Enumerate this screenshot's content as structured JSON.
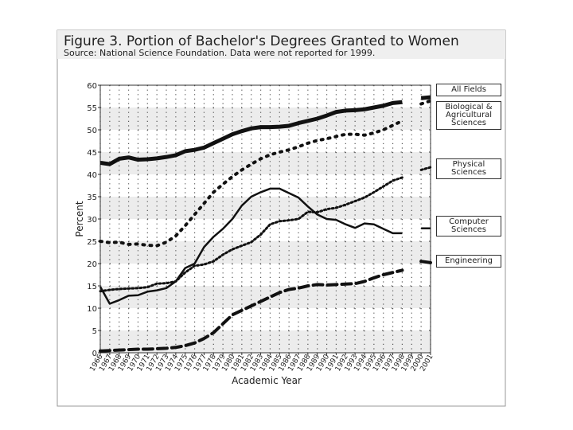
{
  "chart_data": {
    "type": "line",
    "title": "Figure 3. Portion of Bachelor's Degrees Granted to Women",
    "subtitle": "Source: National Science Foundation. Data were not reported for 1999.",
    "x_label": "Academic Year",
    "y_label": "Percent",
    "x": [
      1966,
      1967,
      1968,
      1969,
      1970,
      1971,
      1972,
      1973,
      1974,
      1975,
      1976,
      1977,
      1978,
      1979,
      1980,
      1981,
      1982,
      1983,
      1984,
      1985,
      1986,
      1987,
      1988,
      1989,
      1990,
      1991,
      1992,
      1993,
      1994,
      1995,
      1996,
      1997,
      1998,
      1999,
      2000,
      2001
    ],
    "xlim": [
      1966,
      2001
    ],
    "xticks": [
      1966,
      1967,
      1968,
      1969,
      1970,
      1971,
      1972,
      1973,
      1974,
      1975,
      1976,
      1977,
      1978,
      1979,
      1980,
      1981,
      1982,
      1983,
      1984,
      1985,
      1986,
      1987,
      1988,
      1989,
      1990,
      1991,
      1992,
      1993,
      1994,
      1995,
      1996,
      1997,
      1998,
      1999,
      2000,
      2001
    ],
    "ylim": [
      0,
      60
    ],
    "yticks": [
      0,
      5,
      10,
      15,
      20,
      25,
      30,
      35,
      40,
      45,
      50,
      55,
      60
    ],
    "grid": true,
    "series": [
      {
        "name": "All Fields",
        "color": "#111111",
        "width": 5,
        "dash": "solid",
        "values": [
          42.6,
          42.3,
          43.5,
          43.8,
          43.3,
          43.4,
          43.6,
          43.9,
          44.3,
          45.2,
          45.5,
          46,
          47,
          48,
          49,
          49.7,
          50.3,
          50.6,
          50.6,
          50.7,
          50.9,
          51.5,
          52,
          52.5,
          53.2,
          54,
          54.3,
          54.4,
          54.6,
          55,
          55.4,
          56,
          56.2,
          null,
          57.1,
          57.3
        ]
      },
      {
        "name": "Biological & Agricultural Sciences",
        "color": "#111111",
        "width": 4,
        "dash": "dotted",
        "values": [
          25,
          24.7,
          24.8,
          24.3,
          24.4,
          24.1,
          24,
          24.8,
          26.2,
          28.5,
          31,
          33.5,
          36,
          37.8,
          39.5,
          41,
          42.3,
          43.5,
          44.4,
          45,
          45.5,
          46.2,
          47,
          47.6,
          48,
          48.5,
          49,
          49,
          48.8,
          49.3,
          50,
          51,
          52,
          null,
          55.8,
          56.5
        ]
      },
      {
        "name": "Physical Sciences",
        "color": "#111111",
        "width": 3,
        "dash": "fine-dotted",
        "values": [
          13.8,
          14.1,
          14.3,
          14.4,
          14.5,
          14.7,
          15.5,
          15.6,
          16,
          18,
          19.5,
          19.8,
          20.5,
          22,
          23.2,
          24,
          24.8,
          26.5,
          28.8,
          29.5,
          29.7,
          30,
          31.6,
          31.5,
          32.2,
          32.5,
          33.2,
          34,
          34.8,
          36,
          37.3,
          38.6,
          39.3,
          null,
          41,
          41.6
        ]
      },
      {
        "name": "Computer Sciences",
        "color": "#111111",
        "width": 2.5,
        "dash": "solid",
        "values": [
          14.8,
          11,
          11.8,
          12.8,
          12.9,
          13.7,
          14,
          14.5,
          16,
          19,
          20,
          23.7,
          26,
          27.8,
          30,
          33,
          35,
          36,
          36.8,
          36.8,
          35.8,
          34.8,
          32.8,
          31,
          30,
          29.8,
          28.8,
          28,
          29,
          28.8,
          27.8,
          26.8,
          26.8,
          null,
          27.9,
          27.9
        ]
      },
      {
        "name": "Engineering",
        "color": "#111111",
        "width": 4,
        "dash": "dashed",
        "values": [
          0.4,
          0.5,
          0.6,
          0.7,
          0.8,
          0.8,
          0.9,
          1,
          1.2,
          1.6,
          2.2,
          3.2,
          4.5,
          6.5,
          8.5,
          9.5,
          10.5,
          11.5,
          12.5,
          13.5,
          14.2,
          14.5,
          15,
          15.3,
          15.2,
          15.3,
          15.4,
          15.5,
          16,
          16.8,
          17.5,
          18,
          18.5,
          null,
          20.5,
          20.2
        ]
      }
    ]
  }
}
